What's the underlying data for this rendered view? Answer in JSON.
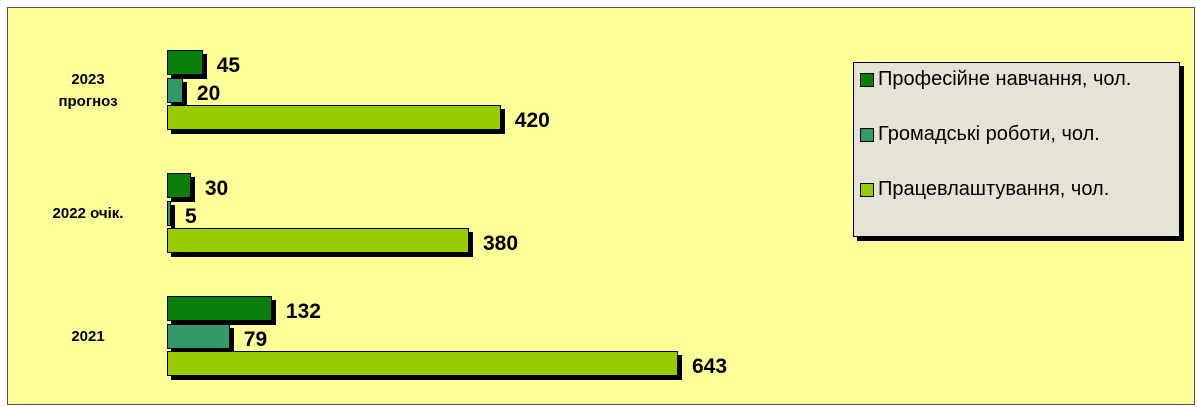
{
  "chart_data": {
    "type": "bar",
    "orientation": "horizontal",
    "categories": [
      "2023\nпрогноз",
      "2022 очік.",
      "2021"
    ],
    "series": [
      {
        "name": "Професійне навчання, чол.",
        "color": "#0b7f0b",
        "values": [
          45,
          30,
          132
        ]
      },
      {
        "name": "Громадські роботи, чол.",
        "color": "#339966",
        "values": [
          20,
          5,
          79
        ]
      },
      {
        "name": "Працевлаштування, чол.",
        "color": "#99cc00",
        "values": [
          420,
          380,
          643
        ]
      }
    ],
    "legend": "right"
  }
}
